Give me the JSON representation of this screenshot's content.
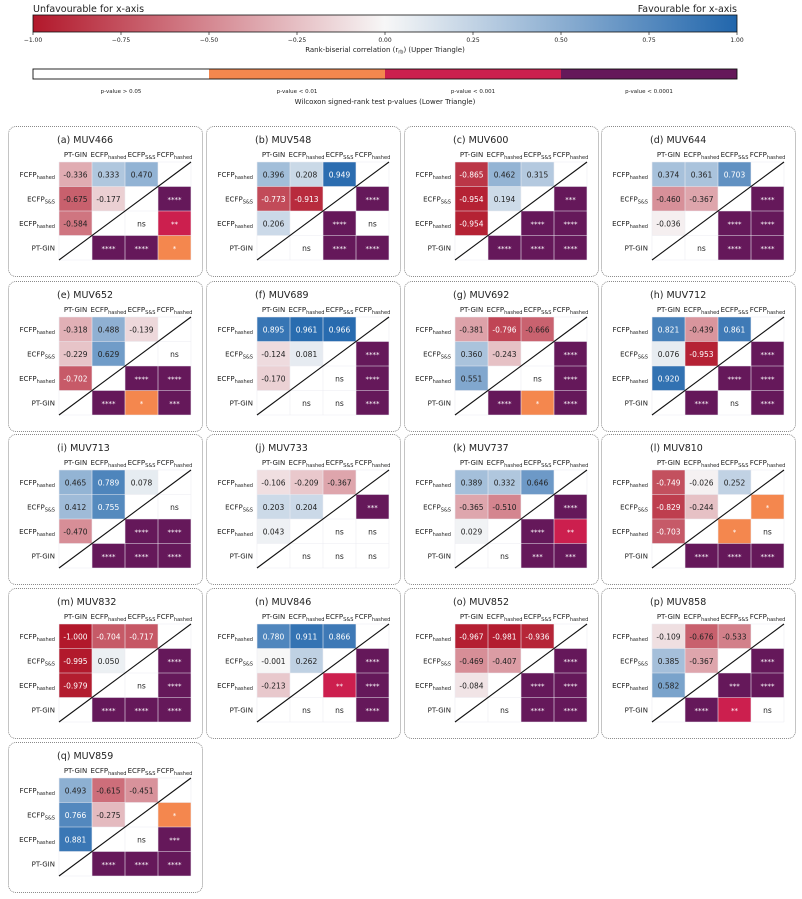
{
  "colorbar_rbc": {
    "left_title": "Unfavourable for x-axis",
    "right_title": "Favourable for x-axis",
    "ticks": [
      "−1.00",
      "−0.75",
      "−0.50",
      "−0.25",
      "0.00",
      "0.25",
      "0.50",
      "0.75",
      "1.00"
    ],
    "label": "Rank-biserial correlation (r_rb) (Upper Triangle)",
    "label_main": "Rank-biserial correlation (r",
    "label_sub": "rb",
    "label_end": ") (Upper Triangle)",
    "colors": {
      "neg": "#b2182b",
      "mid": "#f7f7f7",
      "pos": "#2166ac"
    }
  },
  "colorbar_p": {
    "segments": [
      {
        "label": "p-value > 0.05",
        "color": "#ffffff"
      },
      {
        "label": "p-value < 0.01",
        "color": "#f4874e"
      },
      {
        "label": "p-value < 0.001",
        "color": "#cc1f4e"
      },
      {
        "label": "p-value < 0.0001",
        "color": "#65185a"
      }
    ],
    "label": "Wilcoxon signed-rank test p-values (Lower Triangle)"
  },
  "chart_data": {
    "type": "heatmap",
    "description_axes": [
      "PT-GIN",
      "ECFP_hashed",
      "ECFP_S&S",
      "FCFP_hashed"
    ],
    "col_labels": [
      {
        "main": "PT-GIN",
        "sub": ""
      },
      {
        "main": "ECFP",
        "sub": "hashed"
      },
      {
        "main": "ECFP",
        "sub": "S&S"
      },
      {
        "main": "FCFP",
        "sub": "hashed"
      }
    ],
    "row_labels": [
      {
        "main": "FCFP",
        "sub": "hashed"
      },
      {
        "main": "ECFP",
        "sub": "S&S"
      },
      {
        "main": "ECFP",
        "sub": "hashed"
      },
      {
        "main": "PT-GIN",
        "sub": ""
      }
    ],
    "rbc_range": [
      -1.0,
      1.0
    ],
    "p_fill_colors": {
      "ns": "#ffffff",
      "*": "#f4874e",
      "**": "#cc1f4e",
      "***": "#65185a",
      "****": "#65185a"
    },
    "panels": [
      {
        "title": "(a) MUV466",
        "rbc": [
          [
            -0.336,
            0.333,
            0.47
          ],
          [
            -0.675,
            -0.177
          ],
          [
            -0.584
          ]
        ],
        "p": [
          [
            "****"
          ],
          [
            "ns",
            "**"
          ],
          [
            "****",
            "****",
            "*"
          ]
        ]
      },
      {
        "title": "(b) MUV548",
        "rbc": [
          [
            0.396,
            0.208,
            0.949
          ],
          [
            -0.773,
            -0.913
          ],
          [
            0.206
          ]
        ],
        "p": [
          [
            "****"
          ],
          [
            "****",
            "ns"
          ],
          [
            "ns",
            "****",
            "****"
          ]
        ]
      },
      {
        "title": "(c) MUV600",
        "rbc": [
          [
            -0.865,
            0.462,
            0.315
          ],
          [
            -0.954,
            0.194
          ],
          [
            -0.954
          ]
        ],
        "p": [
          [
            "***"
          ],
          [
            "****",
            "****"
          ],
          [
            "****",
            "****",
            "****"
          ]
        ]
      },
      {
        "title": "(d) MUV644",
        "rbc": [
          [
            0.374,
            0.361,
            0.703
          ],
          [
            -0.46,
            -0.367
          ],
          [
            -0.036
          ]
        ],
        "p": [
          [
            "****"
          ],
          [
            "****",
            "****"
          ],
          [
            "ns",
            "****",
            "****"
          ]
        ]
      },
      {
        "title": "(e) MUV652",
        "rbc": [
          [
            -0.318,
            0.488,
            -0.139
          ],
          [
            -0.229,
            0.629
          ],
          [
            -0.702
          ]
        ],
        "p": [
          [
            "ns"
          ],
          [
            "****",
            "****"
          ],
          [
            "****",
            "*",
            "***"
          ]
        ]
      },
      {
        "title": "(f) MUV689",
        "rbc": [
          [
            0.895,
            0.961,
            0.966
          ],
          [
            -0.124,
            0.081
          ],
          [
            -0.17
          ]
        ],
        "p": [
          [
            "****"
          ],
          [
            "ns",
            "****"
          ],
          [
            "ns",
            "ns",
            "****"
          ]
        ]
      },
      {
        "title": "(g) MUV692",
        "rbc": [
          [
            -0.381,
            -0.796,
            -0.666
          ],
          [
            0.36,
            -0.243
          ],
          [
            0.551
          ]
        ],
        "p": [
          [
            "****"
          ],
          [
            "ns",
            "****"
          ],
          [
            "****",
            "*",
            "****"
          ]
        ]
      },
      {
        "title": "(h) MUV712",
        "rbc": [
          [
            0.821,
            -0.439,
            0.861
          ],
          [
            0.076,
            -0.953
          ],
          [
            0.92
          ]
        ],
        "p": [
          [
            "****"
          ],
          [
            "****",
            "****"
          ],
          [
            "****",
            "ns",
            "****"
          ]
        ]
      },
      {
        "title": "(i) MUV713",
        "rbc": [
          [
            0.465,
            0.789,
            0.078
          ],
          [
            0.412,
            0.755
          ],
          [
            -0.47
          ]
        ],
        "p": [
          [
            "ns"
          ],
          [
            "****",
            "****"
          ],
          [
            "****",
            "****",
            "****"
          ]
        ]
      },
      {
        "title": "(j) MUV733",
        "rbc": [
          [
            -0.106,
            -0.209,
            -0.367
          ],
          [
            0.203,
            0.204
          ],
          [
            0.043
          ]
        ],
        "p": [
          [
            "***"
          ],
          [
            "ns",
            "ns"
          ],
          [
            "ns",
            "ns",
            "ns"
          ]
        ]
      },
      {
        "title": "(k) MUV737",
        "rbc": [
          [
            0.389,
            0.332,
            0.646
          ],
          [
            -0.365,
            -0.51
          ],
          [
            0.029
          ]
        ],
        "p": [
          [
            "****"
          ],
          [
            "****",
            "**"
          ],
          [
            "ns",
            "***",
            "***"
          ]
        ]
      },
      {
        "title": "(l) MUV810",
        "rbc": [
          [
            -0.749,
            -0.026,
            0.252
          ],
          [
            -0.829,
            -0.244
          ],
          [
            -0.703
          ]
        ],
        "p": [
          [
            "*"
          ],
          [
            "*",
            "ns"
          ],
          [
            "****",
            "****",
            "****"
          ]
        ]
      },
      {
        "title": "(m) MUV832",
        "rbc": [
          [
            -1.0,
            -0.704,
            -0.717
          ],
          [
            -0.995,
            0.05
          ],
          [
            -0.979
          ]
        ],
        "p": [
          [
            "****"
          ],
          [
            "ns",
            "****"
          ],
          [
            "****",
            "****",
            "****"
          ]
        ]
      },
      {
        "title": "(n) MUV846",
        "rbc": [
          [
            0.78,
            0.911,
            0.866
          ],
          [
            -0.001,
            0.262
          ],
          [
            -0.213
          ]
        ],
        "p": [
          [
            "****"
          ],
          [
            "**",
            "****"
          ],
          [
            "ns",
            "ns",
            "****"
          ]
        ]
      },
      {
        "title": "(o) MUV852",
        "rbc": [
          [
            -0.967,
            -0.981,
            -0.936
          ],
          [
            -0.469,
            -0.407
          ],
          [
            -0.084
          ]
        ],
        "p": [
          [
            "****"
          ],
          [
            "****",
            "****"
          ],
          [
            "ns",
            "****",
            "****"
          ]
        ]
      },
      {
        "title": "(p) MUV858",
        "rbc": [
          [
            -0.109,
            -0.676,
            -0.533
          ],
          [
            0.385,
            -0.367
          ],
          [
            0.582
          ]
        ],
        "p": [
          [
            "****"
          ],
          [
            "***",
            "****"
          ],
          [
            "****",
            "**",
            "ns"
          ]
        ]
      },
      {
        "title": "(q) MUV859",
        "rbc": [
          [
            0.493,
            -0.615,
            -0.451
          ],
          [
            0.766,
            -0.275
          ],
          [
            0.881
          ]
        ],
        "p": [
          [
            "*"
          ],
          [
            "ns",
            "***"
          ],
          [
            "****",
            "****",
            "****"
          ]
        ]
      }
    ]
  }
}
